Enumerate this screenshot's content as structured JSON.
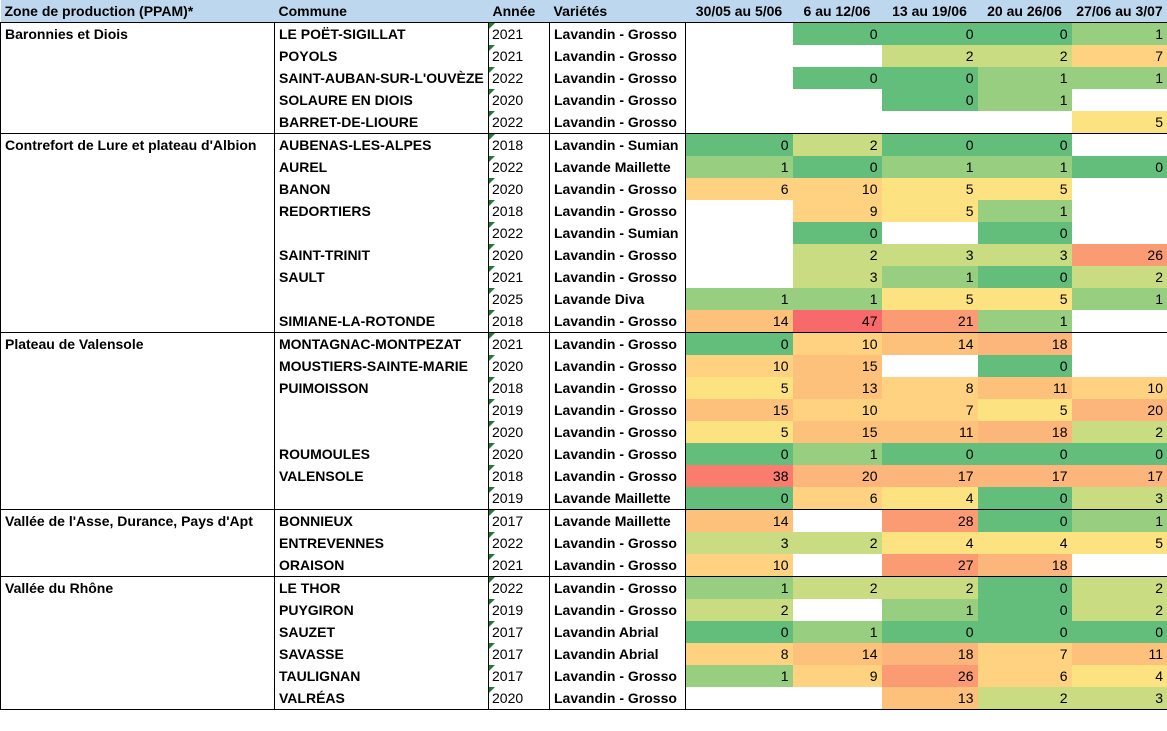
{
  "headers": [
    "Zone de production (PPAM)*",
    "Commune",
    "Année",
    "Variétés",
    "30/05 au 5/06",
    "6 au 12/06",
    "13 au 19/06",
    "20 au 26/06",
    "27/06 au 3/07"
  ],
  "rows": [
    {
      "zone": "Baronnies et Diois",
      "commune": "LE POËT-SIGILLAT",
      "annee": "2021",
      "variete": "Lavandin - Grosso",
      "v": [
        null,
        "0",
        "0",
        "0",
        "1"
      ],
      "grp": true
    },
    {
      "zone": "",
      "commune": "POYOLS",
      "annee": "2021",
      "variete": "Lavandin - Grosso",
      "v": [
        null,
        null,
        "2",
        "2",
        "7"
      ]
    },
    {
      "zone": "",
      "commune": "SAINT-AUBAN-SUR-L'OUVÈZE",
      "annee": "2022",
      "variete": "Lavandin - Grosso",
      "v": [
        null,
        "0",
        "0",
        "1",
        "1"
      ]
    },
    {
      "zone": "",
      "commune": "SOLAURE EN DIOIS",
      "annee": "2020",
      "variete": "Lavandin - Grosso",
      "v": [
        null,
        null,
        "0",
        "1",
        null
      ]
    },
    {
      "zone": "",
      "commune": "BARRET-DE-LIOURE",
      "annee": "2022",
      "variete": "Lavandin - Grosso",
      "v": [
        null,
        null,
        null,
        null,
        "5"
      ]
    },
    {
      "zone": "Contrefort de Lure et plateau d'Albion",
      "commune": "AUBENAS-LES-ALPES",
      "annee": "2018",
      "variete": "Lavandin - Sumian",
      "v": [
        "0",
        "2",
        "0",
        "0",
        null
      ],
      "grp": true
    },
    {
      "zone": "",
      "commune": "AUREL",
      "annee": "2022",
      "variete": "Lavande Maillette",
      "v": [
        "1",
        "0",
        "1",
        "1",
        "0"
      ]
    },
    {
      "zone": "",
      "commune": "BANON",
      "annee": "2020",
      "variete": "Lavandin - Grosso",
      "v": [
        "6",
        "10",
        "5",
        "5",
        null
      ]
    },
    {
      "zone": "",
      "commune": "REDORTIERS",
      "annee": "2018",
      "variete": "Lavandin - Grosso",
      "v": [
        null,
        "9",
        "5",
        "1",
        null
      ]
    },
    {
      "zone": "",
      "commune": "",
      "annee": "2022",
      "variete": "Lavandin - Sumian",
      "v": [
        null,
        "0",
        null,
        "0",
        null
      ]
    },
    {
      "zone": "",
      "commune": "SAINT-TRINIT",
      "annee": "2020",
      "variete": "Lavandin - Grosso",
      "v": [
        null,
        "2",
        "3",
        "3",
        "26"
      ]
    },
    {
      "zone": "",
      "commune": "SAULT",
      "annee": "2021",
      "variete": "Lavandin - Grosso",
      "v": [
        null,
        "3",
        "1",
        "0",
        "2"
      ]
    },
    {
      "zone": "",
      "commune": "",
      "annee": "2025",
      "variete": "Lavande Diva",
      "v": [
        "1",
        "1",
        "5",
        "5",
        "1"
      ]
    },
    {
      "zone": "",
      "commune": "SIMIANE-LA-ROTONDE",
      "annee": "2018",
      "variete": "Lavandin - Grosso",
      "v": [
        "14",
        "47",
        "21",
        "1",
        null
      ]
    },
    {
      "zone": "Plateau de Valensole",
      "commune": "MONTAGNAC-MONTPEZAT",
      "annee": "2021",
      "variete": "Lavandin - Grosso",
      "v": [
        "0",
        "10",
        "14",
        "18",
        null
      ],
      "grp": true
    },
    {
      "zone": "",
      "commune": "MOUSTIERS-SAINTE-MARIE",
      "annee": "2020",
      "variete": "Lavandin - Grosso",
      "v": [
        "10",
        "15",
        null,
        "0",
        null
      ]
    },
    {
      "zone": "",
      "commune": "PUIMOISSON",
      "annee": "2018",
      "variete": "Lavandin - Grosso",
      "v": [
        "5",
        "13",
        "8",
        "11",
        "10"
      ]
    },
    {
      "zone": "",
      "commune": "",
      "annee": "2019",
      "variete": "Lavandin - Grosso",
      "v": [
        "15",
        "10",
        "7",
        "5",
        "20"
      ]
    },
    {
      "zone": "",
      "commune": "",
      "annee": "2020",
      "variete": "Lavandin - Grosso",
      "v": [
        "5",
        "15",
        "11",
        "18",
        "2"
      ]
    },
    {
      "zone": "",
      "commune": "ROUMOULES",
      "annee": "2020",
      "variete": "Lavandin - Grosso",
      "v": [
        "0",
        "1",
        "0",
        "0",
        "0"
      ]
    },
    {
      "zone": "",
      "commune": "VALENSOLE",
      "annee": "2018",
      "variete": "Lavandin - Grosso",
      "v": [
        "38",
        "20",
        "17",
        "17",
        "17"
      ]
    },
    {
      "zone": "",
      "commune": "",
      "annee": "2019",
      "variete": "Lavande Maillette",
      "v": [
        "0",
        "6",
        "4",
        "0",
        "3"
      ]
    },
    {
      "zone": "Vallée de l'Asse, Durance, Pays d'Apt",
      "commune": "BONNIEUX",
      "annee": "2017",
      "variete": "Lavande Maillette",
      "v": [
        "14",
        null,
        "28",
        "0",
        "1"
      ],
      "grp": true
    },
    {
      "zone": "",
      "commune": "ENTREVENNES",
      "annee": "2022",
      "variete": "Lavandin - Grosso",
      "v": [
        "3",
        "2",
        "4",
        "4",
        "5"
      ]
    },
    {
      "zone": "",
      "commune": "ORAISON",
      "annee": "2021",
      "variete": "Lavandin - Grosso",
      "v": [
        "10",
        null,
        "27",
        "18",
        null
      ]
    },
    {
      "zone": "Vallée du Rhône",
      "commune": "LE THOR",
      "annee": "2022",
      "variete": "Lavandin - Grosso",
      "v": [
        "1",
        "2",
        "2",
        "0",
        "2"
      ],
      "grp": true
    },
    {
      "zone": "",
      "commune": "PUYGIRON",
      "annee": "2019",
      "variete": "Lavandin - Grosso",
      "v": [
        "2",
        null,
        "1",
        "0",
        "2"
      ]
    },
    {
      "zone": "",
      "commune": "SAUZET",
      "annee": "2017",
      "variete": "Lavandin Abrial",
      "v": [
        "0",
        "1",
        "0",
        "0",
        "0"
      ]
    },
    {
      "zone": "",
      "commune": "SAVASSE",
      "annee": "2017",
      "variete": "Lavandin Abrial",
      "v": [
        "8",
        "14",
        "18",
        "7",
        "11"
      ]
    },
    {
      "zone": "",
      "commune": "TAULIGNAN",
      "annee": "2017",
      "variete": "Lavandin - Grosso",
      "v": [
        "1",
        "9",
        "26",
        "6",
        "4"
      ]
    },
    {
      "zone": "",
      "commune": "VALRÉAS",
      "annee": "2020",
      "variete": "Lavandin - Grosso",
      "v": [
        null,
        null,
        "13",
        "2",
        "3"
      ],
      "last": true
    }
  ],
  "colors": {
    "header_bg": "#bdd7ee",
    "scale": [
      {
        "max": 0,
        "color": "#63be7b"
      },
      {
        "max": 1,
        "color": "#98ce7f"
      },
      {
        "max": 3,
        "color": "#c9dc81"
      },
      {
        "max": 5,
        "color": "#fde282"
      },
      {
        "max": 10,
        "color": "#fed280"
      },
      {
        "max": 15,
        "color": "#fdc17c"
      },
      {
        "max": 20,
        "color": "#fcb57a"
      },
      {
        "max": 28,
        "color": "#fa9b74"
      },
      {
        "max": 40,
        "color": "#f97c6e"
      },
      {
        "max": 100,
        "color": "#f8696b"
      }
    ]
  }
}
